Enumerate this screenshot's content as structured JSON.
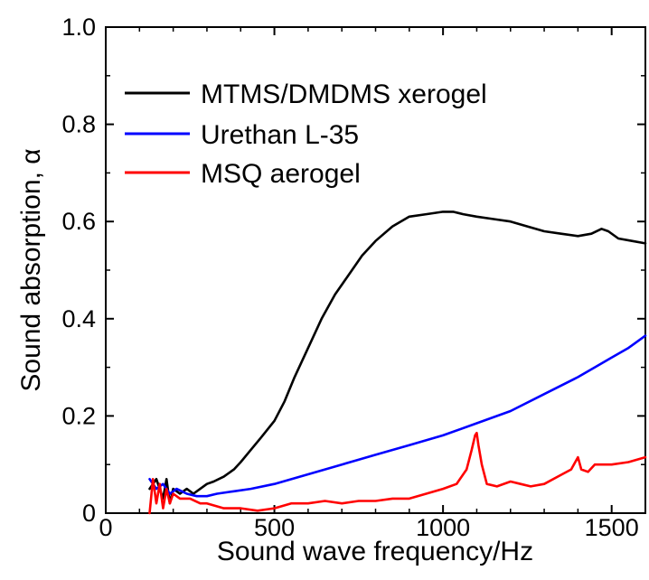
{
  "chart_data": {
    "type": "line",
    "title": "",
    "xlabel": "Sound wave frequency/Hz",
    "ylabel": "Sound absorption, α",
    "xlim": [
      0,
      1600
    ],
    "ylim": [
      0,
      1.0
    ],
    "xticks": [
      0,
      500,
      1000,
      1500
    ],
    "xtick_labels": [
      "0",
      "500",
      "1000",
      "1500"
    ],
    "yticks": [
      0,
      0.2,
      0.4,
      0.6,
      0.8,
      1.0
    ],
    "ytick_labels": [
      "0",
      "0.2",
      "0.4",
      "0.6",
      "0.8",
      "1.0"
    ],
    "grid": false,
    "legend_position": "top-left",
    "series": [
      {
        "name": "MTMS/DMDMS xerogel",
        "color": "#000000",
        "x": [
          130,
          150,
          170,
          180,
          190,
          200,
          220,
          240,
          260,
          280,
          300,
          320,
          350,
          380,
          400,
          430,
          460,
          500,
          530,
          560,
          600,
          640,
          680,
          720,
          760,
          800,
          850,
          900,
          950,
          1000,
          1030,
          1060,
          1100,
          1150,
          1200,
          1250,
          1300,
          1350,
          1400,
          1440,
          1470,
          1490,
          1520,
          1560,
          1600
        ],
        "y": [
          0.05,
          0.07,
          0.03,
          0.07,
          0.02,
          0.05,
          0.04,
          0.05,
          0.04,
          0.05,
          0.06,
          0.065,
          0.075,
          0.09,
          0.105,
          0.13,
          0.155,
          0.19,
          0.23,
          0.28,
          0.34,
          0.4,
          0.45,
          0.49,
          0.53,
          0.56,
          0.59,
          0.61,
          0.615,
          0.62,
          0.62,
          0.615,
          0.61,
          0.605,
          0.6,
          0.59,
          0.58,
          0.575,
          0.57,
          0.575,
          0.585,
          0.58,
          0.565,
          0.56,
          0.555
        ]
      },
      {
        "name": "Urethan L-35",
        "color": "#0000ff",
        "x": [
          130,
          150,
          170,
          190,
          210,
          240,
          270,
          300,
          330,
          380,
          430,
          500,
          600,
          700,
          800,
          900,
          1000,
          1100,
          1200,
          1300,
          1400,
          1450,
          1500,
          1550,
          1600
        ],
        "y": [
          0.07,
          0.05,
          0.06,
          0.04,
          0.05,
          0.04,
          0.035,
          0.035,
          0.04,
          0.045,
          0.05,
          0.06,
          0.08,
          0.1,
          0.12,
          0.14,
          0.16,
          0.185,
          0.21,
          0.245,
          0.28,
          0.3,
          0.32,
          0.34,
          0.365
        ]
      },
      {
        "name": "MSQ aerogel",
        "color": "#ff0000",
        "x": [
          130,
          140,
          150,
          160,
          170,
          180,
          190,
          200,
          220,
          250,
          280,
          300,
          350,
          400,
          450,
          500,
          550,
          600,
          650,
          700,
          750,
          800,
          850,
          900,
          950,
          1000,
          1040,
          1070,
          1085,
          1095,
          1100,
          1105,
          1115,
          1130,
          1160,
          1200,
          1230,
          1260,
          1300,
          1340,
          1380,
          1400,
          1410,
          1430,
          1450,
          1500,
          1550,
          1600
        ],
        "y": [
          0.0,
          0.07,
          0.02,
          0.06,
          0.01,
          0.05,
          0.02,
          0.04,
          0.03,
          0.03,
          0.02,
          0.02,
          0.01,
          0.01,
          0.005,
          0.01,
          0.02,
          0.02,
          0.025,
          0.02,
          0.025,
          0.025,
          0.03,
          0.03,
          0.04,
          0.05,
          0.06,
          0.09,
          0.13,
          0.16,
          0.165,
          0.14,
          0.1,
          0.06,
          0.055,
          0.065,
          0.06,
          0.055,
          0.06,
          0.075,
          0.09,
          0.115,
          0.09,
          0.085,
          0.1,
          0.1,
          0.105,
          0.115
        ]
      }
    ]
  }
}
